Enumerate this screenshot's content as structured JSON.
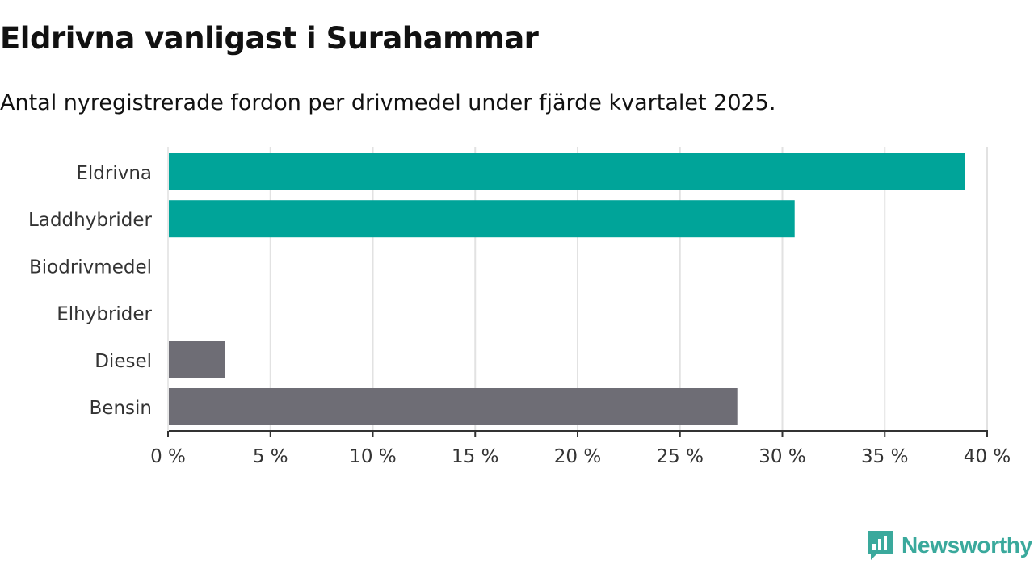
{
  "title": "Eldrivna vanligast i Surahammar",
  "subtitle": "Antal nyregistrerade fordon per drivmedel under fjärde kvartalet 2025.",
  "brand": {
    "name": "Newsworthy",
    "color": "#3aa99c"
  },
  "chart_data": {
    "type": "bar",
    "orientation": "horizontal",
    "title": "Eldrivna vanligast i Surahammar",
    "subtitle": "Antal nyregistrerade fordon per drivmedel under fjärde kvartalet 2025.",
    "xlabel": "",
    "ylabel": "",
    "categories": [
      "Eldrivna",
      "Laddhybrider",
      "Biodrivmedel",
      "Elhybrider",
      "Diesel",
      "Bensin"
    ],
    "values": [
      38.9,
      30.6,
      0,
      0,
      2.8,
      27.8
    ],
    "colors": [
      "#00a499",
      "#00a499",
      "#00a499",
      "#00a499",
      "#6e6d75",
      "#6e6d75"
    ],
    "xlim": [
      0,
      40
    ],
    "ticks": [
      0,
      5,
      10,
      15,
      20,
      25,
      30,
      35,
      40
    ],
    "tick_labels": [
      "0 %",
      "5 %",
      "10 %",
      "15 %",
      "20 %",
      "25 %",
      "30 %",
      "35 %",
      "40 %"
    ],
    "grid": true,
    "legend": "none"
  }
}
